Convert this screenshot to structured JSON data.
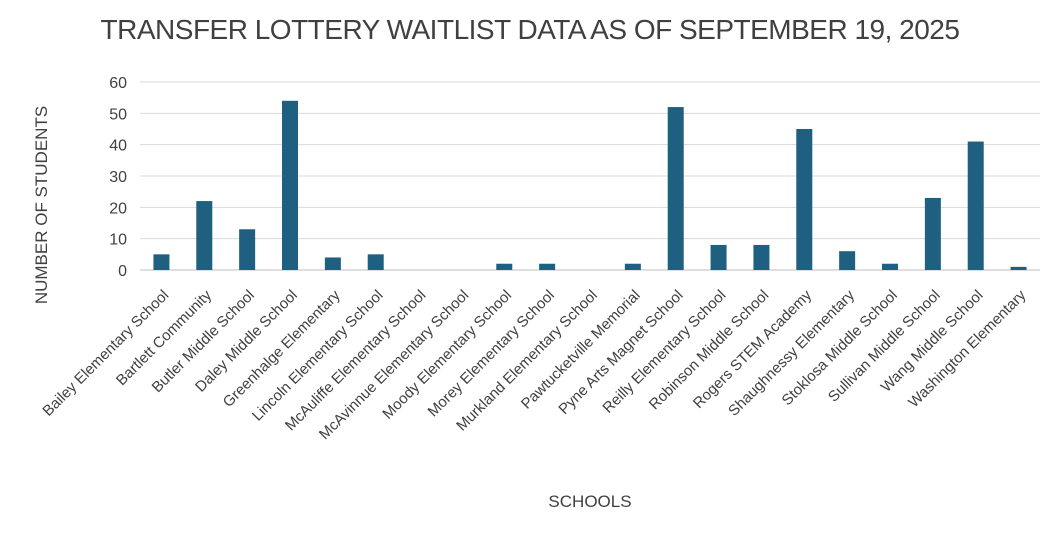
{
  "chart_data": {
    "type": "bar",
    "title": "TRANSFER LOTTERY WAITLIST DATA AS OF SEPTEMBER 19, 2025",
    "xlabel": "SCHOOLS",
    "ylabel": "NUMBER OF STUDENTS",
    "ylim": [
      0,
      60
    ],
    "yticks": [
      0,
      10,
      20,
      30,
      40,
      50,
      60
    ],
    "grid": true,
    "legend": "none",
    "bar_color": "#1f5f80",
    "categories": [
      "Bailey Elementary School",
      "Bartlett Community",
      "Butler Middle School",
      "Daley Middle School",
      "Greenhalge Elementary",
      "Lincoln Elementary School",
      "McAuliffe Elementary School",
      "McAvinnue Elementary School",
      "Moody Elementary School",
      "Morey Elementary School",
      "Murkland Elementary School",
      "Pawtucketville Memorial",
      "Pyne Arts Magnet School",
      "Reilly Elementary School",
      "Robinson Middle School",
      "Rogers STEM Academy",
      "Shaughnessy Elementary",
      "Stoklosa Middle School",
      "Sullivan Middle School",
      "Wang Middle School",
      "Washington Elementary"
    ],
    "values": [
      5,
      22,
      13,
      54,
      4,
      5,
      0,
      0,
      2,
      2,
      0,
      2,
      52,
      8,
      8,
      45,
      6,
      2,
      23,
      41,
      1
    ]
  }
}
